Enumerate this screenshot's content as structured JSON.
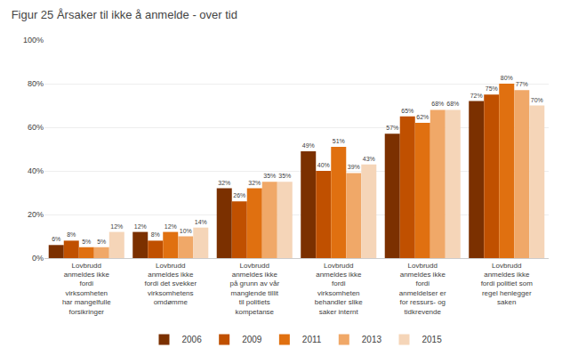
{
  "chart_data": {
    "type": "bar",
    "title": "Figur 25 Årsaker til ikke å anmelde - over tid",
    "categories": [
      "Lovbrudd\nanmeldes ikke\nfordi\nvirksomheten\nhar mangelfulle\nforsikringer",
      "Lovbrudd\nanmeldes ikke\nfordi det svekker\nvirksomhetens\nomdømme",
      "Lovbrudd\nanmeldes ikke\npå grunn av vår\nmanglende tillit\ntil politiets\nkompetanse",
      "Lovbrudd\nanmeldes ikke\nfordi\nvirksomheten\nbehandler slike\nsaker internt",
      "Lovbrudd\nanmeldes ikke\nfordi\nanmeldelser er\nfor ressurs- og\ntidkrevende",
      "Lovbrudd\nanmeldes ikke\nfordi politiet som\nregel henlegger\nsaken"
    ],
    "series": [
      {
        "name": "2006",
        "color": "#7B3000",
        "values": [
          6,
          12,
          32,
          49,
          57,
          72
        ],
        "value_labels": [
          "6%",
          "12%",
          "32%",
          "49%",
          "57%",
          "72%"
        ]
      },
      {
        "name": "2009",
        "color": "#C05000",
        "values": [
          8,
          8,
          26,
          40,
          65,
          75
        ],
        "value_labels": [
          "8%",
          "8%",
          "26%",
          "40%",
          "65%",
          "75%"
        ]
      },
      {
        "name": "2011",
        "color": "#E07010",
        "values": [
          5,
          12,
          32,
          51,
          62,
          80
        ],
        "value_labels": [
          "5%",
          "12%",
          "32%",
          "51%",
          "62%",
          "80%"
        ]
      },
      {
        "name": "2013",
        "color": "#F0A868",
        "values": [
          5,
          10,
          35,
          39,
          68,
          77
        ],
        "value_labels": [
          "5%",
          "10%",
          "35%",
          "39%",
          "68%",
          "77%"
        ]
      },
      {
        "name": "2015",
        "color": "#F5D5B8",
        "values": [
          12,
          14,
          35,
          43,
          68,
          70
        ],
        "value_labels": [
          "12%",
          "14%",
          "35%",
          "43%",
          "68%",
          "70%"
        ]
      }
    ],
    "ylim": [
      0,
      100
    ],
    "yticks": [
      {
        "value": 0,
        "label": "0%"
      },
      {
        "value": 20,
        "label": "20%"
      },
      {
        "value": 40,
        "label": "40%"
      },
      {
        "value": 60,
        "label": "60%"
      },
      {
        "value": 80,
        "label": "80%"
      },
      {
        "value": 100,
        "label": "100%"
      }
    ],
    "grid": true,
    "legend": "bottom",
    "data_labels": true
  }
}
